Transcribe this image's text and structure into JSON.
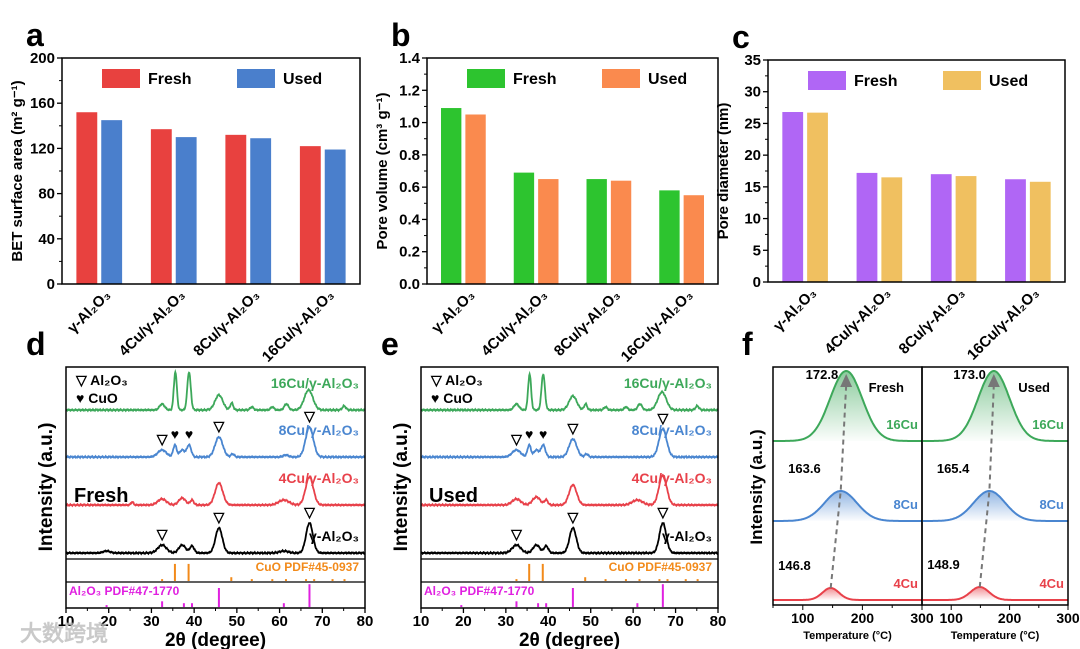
{
  "watermark": "大数跨境",
  "chart_data": [
    {
      "panel": "a",
      "type": "bar",
      "ylabel": "BET surface area (m² g⁻¹)",
      "ylim": [
        0,
        200
      ],
      "yticks": [
        0,
        40,
        80,
        120,
        160,
        200
      ],
      "categories": [
        "γ-Al₂O₃",
        "4Cu/γ-Al₂O₃",
        "8Cu/γ-Al₂O₃",
        "16Cu/γ-Al₂O₃"
      ],
      "series": [
        {
          "name": "Fresh",
          "color": "#e8413f",
          "values": [
            152,
            137,
            132,
            122
          ]
        },
        {
          "name": "Used",
          "color": "#4a7fcc",
          "values": [
            145,
            130,
            129,
            119
          ]
        }
      ],
      "legend": "top"
    },
    {
      "panel": "b",
      "type": "bar",
      "ylabel": "Pore volume (cm³ g⁻¹)",
      "ylim": [
        0,
        1.4
      ],
      "yticks": [
        "0.0",
        "0.2",
        "0.4",
        "0.6",
        "0.8",
        "1.0",
        "1.2",
        "1.4"
      ],
      "categories": [
        "γ-Al₂O₃",
        "4Cu/γ-Al₂O₃",
        "8Cu/γ-Al₂O₃",
        "16Cu/γ-Al₂O₃"
      ],
      "series": [
        {
          "name": "Fresh",
          "color": "#2dc42f",
          "values": [
            1.09,
            0.69,
            0.65,
            0.58
          ]
        },
        {
          "name": "Used",
          "color": "#fa8a4e",
          "values": [
            1.05,
            0.65,
            0.64,
            0.55
          ]
        }
      ],
      "legend": "top"
    },
    {
      "panel": "c",
      "type": "bar",
      "ylabel": "Pore diameter (nm)",
      "ylim": [
        0,
        35
      ],
      "yticks": [
        0,
        5,
        10,
        15,
        20,
        25,
        30,
        35
      ],
      "categories": [
        "γ-Al₂O₃",
        "4Cu/γ-Al₂O₃",
        "8Cu/γ-Al₂O₃",
        "16Cu/γ-Al₂O₃"
      ],
      "series": [
        {
          "name": "Fresh",
          "color": "#b066f5",
          "values": [
            26.8,
            17.2,
            17.0,
            16.2
          ]
        },
        {
          "name": "Used",
          "color": "#f0c060",
          "values": [
            26.7,
            16.5,
            16.7,
            15.8
          ]
        }
      ],
      "legend": "top"
    },
    {
      "panel": "d",
      "type": "line",
      "title": "Fresh",
      "xlabel": "2θ (degree)",
      "ylabel": "Intensity (a.u.)",
      "xlim": [
        10,
        80
      ],
      "xticks": [
        10,
        20,
        30,
        40,
        50,
        60,
        70,
        80
      ],
      "legend": [
        "▽ Al₂O₃",
        "♥ CuO"
      ],
      "series": [
        {
          "name": "16Cu/γ-Al₂O₃",
          "color": "#3da85a",
          "peaks": [
            [
              32.5,
              6,
              0.6
            ],
            [
              35.6,
              38,
              0.35
            ],
            [
              38.8,
              38,
              0.4
            ],
            [
              45.8,
              15,
              0.9
            ],
            [
              48.8,
              7,
              0.35
            ],
            [
              53.5,
              3,
              0.4
            ],
            [
              58.3,
              3,
              0.4
            ],
            [
              61.6,
              6,
              0.5
            ],
            [
              66.8,
              20,
              1.0
            ],
            [
              75.1,
              4,
              0.4
            ]
          ]
        },
        {
          "name": "8Cu/γ-Al₂O₃",
          "color": "#4a86d0",
          "peaks": [
            [
              32.5,
              7,
              1.0
            ],
            [
              35.5,
              12,
              0.4
            ],
            [
              37.2,
              7,
              0.6
            ],
            [
              38.8,
              12,
              0.5
            ],
            [
              45.8,
              20,
              0.9
            ],
            [
              49,
              3,
              0.4
            ],
            [
              61.5,
              2,
              0.6
            ],
            [
              67,
              30,
              0.9
            ]
          ]
        },
        {
          "name": "4Cu/γ-Al₂O₃",
          "color": "#e8414a",
          "peaks": [
            [
              25.5,
              3,
              0.3
            ],
            [
              32.5,
              6,
              1.0
            ],
            [
              37.2,
              7,
              0.8
            ],
            [
              39.5,
              5,
              0.4
            ],
            [
              45.8,
              22,
              0.9
            ],
            [
              61,
              5,
              1.2
            ],
            [
              67,
              28,
              0.9
            ]
          ]
        },
        {
          "name": "γ-Al₂O₃",
          "color": "#000000",
          "peaks": [
            [
              19.5,
              2,
              0.8
            ],
            [
              32.5,
              8,
              1.0
            ],
            [
              37.2,
              8,
              0.8
            ],
            [
              39.5,
              7,
              0.5
            ],
            [
              45.8,
              25,
              0.8
            ],
            [
              61,
              2,
              1.0
            ],
            [
              67,
              30,
              0.8
            ]
          ]
        }
      ],
      "markers": [
        {
          "series": 1,
          "symbols": [
            [
              32.5,
              "▽"
            ],
            [
              35.5,
              "♥"
            ],
            [
              38.8,
              "♥"
            ],
            [
              45.8,
              "▽"
            ],
            [
              67,
              "▽"
            ]
          ]
        },
        {
          "series": 3,
          "symbols": [
            [
              32.5,
              "▽"
            ],
            [
              45.8,
              "▽"
            ],
            [
              67,
              "▽"
            ]
          ]
        }
      ],
      "references": [
        {
          "name": "CuO PDF#45-0937",
          "color": "#f28a1a",
          "lines": [
            [
              32.5,
              1
            ],
            [
              35.5,
              9
            ],
            [
              38.7,
              9
            ],
            [
              48.7,
              2
            ],
            [
              53.5,
              1
            ],
            [
              58.3,
              1
            ],
            [
              61.5,
              1
            ],
            [
              66.2,
              1
            ],
            [
              68.1,
              1
            ],
            [
              72.4,
              1
            ],
            [
              75.2,
              1
            ]
          ]
        },
        {
          "name": "Al₂O₃ PDF#47-1770",
          "color": "#e020e0",
          "lines": [
            [
              19.5,
              1
            ],
            [
              32.5,
              3
            ],
            [
              37.6,
              2
            ],
            [
              39.5,
              2
            ],
            [
              45.8,
              10
            ],
            [
              61,
              2
            ],
            [
              67,
              12
            ]
          ]
        }
      ]
    },
    {
      "panel": "e",
      "type": "line",
      "title": "Used",
      "xlabel": "2θ (degree)",
      "ylabel": "Intensity (a.u.)",
      "xlim": [
        10,
        80
      ],
      "xticks": [
        10,
        20,
        30,
        40,
        50,
        60,
        70,
        80
      ],
      "legend": [
        "▽ Al₂O₃",
        "♥ CuO"
      ],
      "series": [
        {
          "name": "16Cu/γ-Al₂O₃",
          "color": "#3da85a",
          "peaks": [
            [
              32.5,
              6,
              0.6
            ],
            [
              35.6,
              36,
              0.35
            ],
            [
              38.8,
              36,
              0.4
            ],
            [
              45.8,
              14,
              0.9
            ],
            [
              48.8,
              6,
              0.35
            ],
            [
              53.5,
              3,
              0.4
            ],
            [
              58.3,
              3,
              0.4
            ],
            [
              61.6,
              6,
              0.5
            ],
            [
              66.8,
              18,
              1.0
            ],
            [
              75.1,
              4,
              0.4
            ]
          ]
        },
        {
          "name": "8Cu/γ-Al₂O₃",
          "color": "#4a86d0",
          "peaks": [
            [
              32.5,
              7,
              1.0
            ],
            [
              35.5,
              12,
              0.4
            ],
            [
              37.2,
              7,
              0.6
            ],
            [
              38.8,
              12,
              0.5
            ],
            [
              45.8,
              18,
              0.9
            ],
            [
              49,
              3,
              0.4
            ],
            [
              67,
              28,
              0.9
            ]
          ]
        },
        {
          "name": "4Cu/γ-Al₂O₃",
          "color": "#e8414a",
          "peaks": [
            [
              32.5,
              6,
              1.0
            ],
            [
              37.2,
              8,
              0.9
            ],
            [
              39.5,
              5,
              0.4
            ],
            [
              45.8,
              20,
              0.9
            ],
            [
              61,
              5,
              1.2
            ],
            [
              67,
              30,
              0.9
            ]
          ]
        },
        {
          "name": "γ-Al₂O₃",
          "color": "#000000",
          "peaks": [
            [
              32.5,
              8,
              1.0
            ],
            [
              37.2,
              8,
              0.8
            ],
            [
              39.5,
              7,
              0.5
            ],
            [
              45.8,
              25,
              0.8
            ],
            [
              67,
              30,
              0.8
            ]
          ]
        }
      ],
      "markers": [
        {
          "series": 1,
          "symbols": [
            [
              32.5,
              "▽"
            ],
            [
              35.5,
              "♥"
            ],
            [
              38.8,
              "♥"
            ],
            [
              45.8,
              "▽"
            ],
            [
              67,
              "▽"
            ]
          ]
        },
        {
          "series": 3,
          "symbols": [
            [
              32.5,
              "▽"
            ],
            [
              45.8,
              "▽"
            ],
            [
              67,
              "▽"
            ]
          ]
        }
      ],
      "references": [
        {
          "name": "CuO PDF#45-0937",
          "color": "#f28a1a",
          "lines": [
            [
              32.5,
              1
            ],
            [
              35.5,
              9
            ],
            [
              38.7,
              9
            ],
            [
              48.7,
              2
            ],
            [
              53.5,
              1
            ],
            [
              58.3,
              1
            ],
            [
              61.5,
              1
            ],
            [
              66.2,
              1
            ],
            [
              68.1,
              1
            ],
            [
              72.4,
              1
            ],
            [
              75.2,
              1
            ]
          ]
        },
        {
          "name": "Al₂O₃ PDF#47-1770",
          "color": "#e020e0",
          "lines": [
            [
              19.5,
              1
            ],
            [
              32.5,
              3
            ],
            [
              37.6,
              2
            ],
            [
              39.5,
              2
            ],
            [
              45.8,
              10
            ],
            [
              61,
              2
            ],
            [
              67,
              12
            ]
          ]
        }
      ]
    },
    {
      "panel": "f",
      "type": "line",
      "xlabel": "Temperature (°C)",
      "ylabel": "Intensity (a.u.)",
      "xlim": [
        50,
        300
      ],
      "xticks": [
        100,
        200,
        300
      ],
      "subplots": [
        {
          "title": "Fresh",
          "series": [
            {
              "name": "16Cu",
              "color": "#3da85a",
              "peak": 172.8,
              "height": 70,
              "sigma": 27
            },
            {
              "name": "8Cu",
              "color": "#4a86d0",
              "peak": 163.6,
              "height": 30,
              "sigma": 27
            },
            {
              "name": "4Cu",
              "color": "#e8414a",
              "peak": 146.8,
              "height": 12,
              "sigma": 14
            }
          ],
          "peak_labels": [
            "172.8",
            "163.6",
            "146.8"
          ]
        },
        {
          "title": "Used",
          "series": [
            {
              "name": "16Cu",
              "color": "#3da85a",
              "peak": 173.0,
              "height": 70,
              "sigma": 27
            },
            {
              "name": "8Cu",
              "color": "#4a86d0",
              "peak": 165.4,
              "height": 30,
              "sigma": 27
            },
            {
              "name": "4Cu",
              "color": "#e8414a",
              "peak": 148.9,
              "height": 13,
              "sigma": 16
            }
          ],
          "peak_labels": [
            "173.0",
            "165.4",
            "148.9"
          ]
        }
      ]
    }
  ]
}
